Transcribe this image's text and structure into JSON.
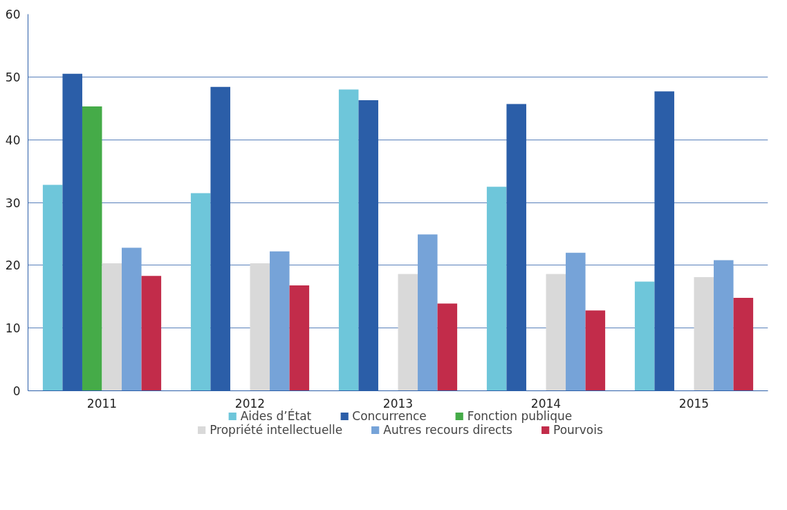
{
  "chart_data": {
    "type": "bar",
    "categories": [
      "2011",
      "2012",
      "2013",
      "2014",
      "2015"
    ],
    "series": [
      {
        "name": "Aides d’État",
        "color": "#6ec6da",
        "values": [
          32.8,
          31.5,
          48.0,
          32.5,
          17.4
        ]
      },
      {
        "name": "Concurrence",
        "color": "#2b5ea8",
        "values": [
          50.5,
          48.4,
          46.3,
          45.7,
          47.7
        ]
      },
      {
        "name": "Fonction publique",
        "color": "#45ab48",
        "values": [
          45.3,
          null,
          null,
          null,
          null
        ]
      },
      {
        "name": "Propriété intellectuelle",
        "color": "#d9d9d9",
        "values": [
          20.3,
          20.3,
          18.6,
          18.6,
          18.1
        ]
      },
      {
        "name": "Autres recours directs",
        "color": "#76a3d8",
        "values": [
          22.8,
          22.2,
          24.9,
          22.0,
          20.8
        ]
      },
      {
        "name": "Pourvois",
        "color": "#c22c4a",
        "values": [
          18.3,
          16.8,
          13.9,
          12.8,
          14.8
        ]
      }
    ],
    "ylim": [
      0,
      60
    ],
    "yticks": [
      0,
      10,
      20,
      30,
      40,
      50,
      60
    ],
    "grid": "y",
    "legend": "bottom"
  }
}
